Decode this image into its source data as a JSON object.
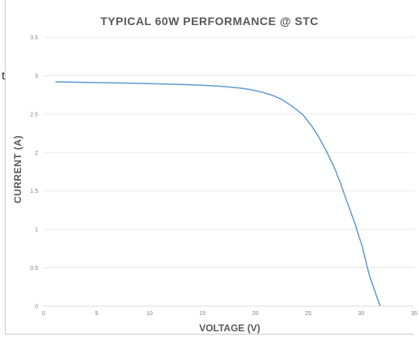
{
  "stray_text": "t",
  "chart_data": {
    "type": "line",
    "title": "TYPICAL 60W PERFORMANCE @ STC",
    "xlabel": "VOLTAGE (V)",
    "ylabel": "CURRENT (A)",
    "xlim": [
      0,
      35
    ],
    "ylim": [
      0,
      3.5
    ],
    "x_ticks": [
      "0",
      "5",
      "10",
      "15",
      "20",
      "25",
      "30",
      "35"
    ],
    "y_ticks": [
      "0",
      "0.5",
      "1",
      "1.5",
      "2",
      "2.5",
      "3",
      "3.5"
    ],
    "grid": true,
    "series_color": "#5b9bd5",
    "series": [
      {
        "x": [
          1.1,
          3,
          5,
          7,
          9,
          11,
          13,
          15,
          17,
          18.5,
          19.5,
          20.5,
          21.5,
          22.5,
          23.5,
          24.5,
          25.3,
          26,
          26.7,
          27.2,
          27.6,
          27.8,
          28,
          28.3,
          28.6,
          29,
          29.4,
          29.8,
          30.1,
          30.3,
          30.5,
          30.7,
          30.9,
          31.1,
          31.3,
          31.5,
          31.7,
          31.8
        ],
        "y": [
          2.92,
          2.915,
          2.91,
          2.905,
          2.9,
          2.893,
          2.885,
          2.875,
          2.86,
          2.84,
          2.82,
          2.79,
          2.75,
          2.69,
          2.6,
          2.49,
          2.35,
          2.2,
          2.02,
          1.88,
          1.76,
          1.68,
          1.62,
          1.5,
          1.38,
          1.23,
          1.08,
          0.9,
          0.78,
          0.66,
          0.55,
          0.44,
          0.35,
          0.27,
          0.19,
          0.11,
          0.04,
          0
        ]
      }
    ]
  }
}
